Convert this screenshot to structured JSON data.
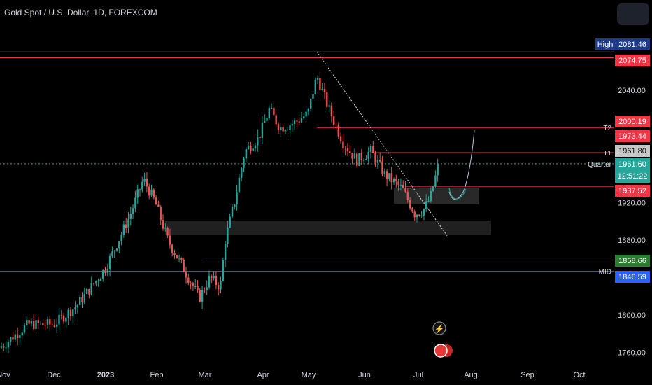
{
  "header": {
    "title": "Gold Spot / U.S. Dollar, 1D, FOREXCOM"
  },
  "chart_data": {
    "type": "candlestick",
    "x_ticks": [
      "Nov",
      "Dec",
      "2023",
      "Feb",
      "Mar",
      "Apr",
      "May",
      "Jun",
      "Jul",
      "Aug",
      "Sep",
      "Oct"
    ],
    "y_ticks": [
      "2040.00",
      "1920.00",
      "1880.00",
      "1800.00",
      "1760.00"
    ],
    "ylim": [
      1750,
      2095
    ],
    "price_labels": [
      {
        "key": "high_tag",
        "text": "High",
        "value": 2081.46,
        "display": "2081.46",
        "color": "#1e3a8a"
      },
      {
        "key": "res",
        "value": 2074.75,
        "display": "2074.75",
        "color": "#f23645"
      },
      {
        "key": "t2",
        "value": 2000.19,
        "display": "2000.19",
        "color": "#f23645"
      },
      {
        "key": "t2b",
        "value": 1973.44,
        "display": "1973.44",
        "color": "#f23645"
      },
      {
        "key": "t1",
        "value": 1961.8,
        "display": "1961.80",
        "color": "#c7c7c7"
      },
      {
        "key": "last",
        "value": 1961.6,
        "display": "1961.60",
        "timer": "12:51:22",
        "color": "#26a69a"
      },
      {
        "key": "sup",
        "value": 1937.52,
        "display": "1937.52",
        "color": "#f23645"
      },
      {
        "key": "green",
        "value": 1858.66,
        "display": "1858.66",
        "color": "#2e7d32"
      },
      {
        "key": "mid",
        "value": 1846.59,
        "display": "1846.59",
        "color": "#2962ff"
      }
    ],
    "line_labels": {
      "t2": "T2",
      "t1": "T1",
      "quarter": "Quarter",
      "mid": "MID"
    },
    "colors": {
      "up": "#26a69a",
      "down": "#ef5350"
    }
  }
}
